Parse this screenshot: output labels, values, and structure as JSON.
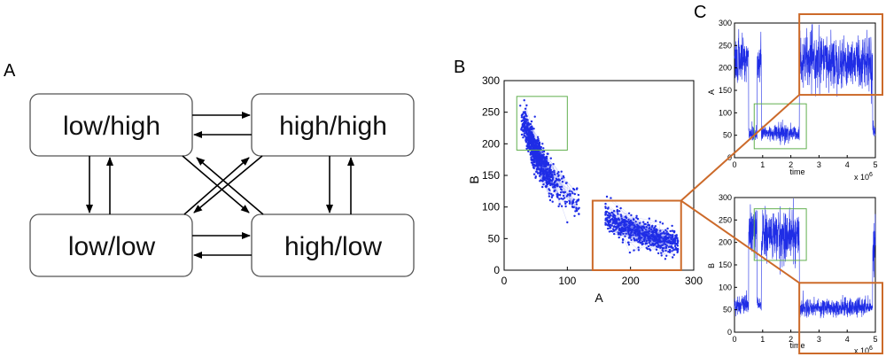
{
  "panels": {
    "a": {
      "letter": "A"
    },
    "b": {
      "letter": "B"
    },
    "c": {
      "letter": "C"
    }
  },
  "state_diagram": {
    "states": [
      {
        "id": "low-high",
        "label": "low/high"
      },
      {
        "id": "high-high",
        "label": "high/high"
      },
      {
        "id": "low-low",
        "label": "low/low"
      },
      {
        "id": "high-low",
        "label": "high/low"
      }
    ]
  },
  "colors": {
    "data": "#1f2de6",
    "green_box": "#62b04f",
    "orange_box": "#cc6a2a",
    "box_stroke": "#555555"
  },
  "chart_data": [
    {
      "type": "scatter",
      "id": "panel-b",
      "xlabel": "A",
      "ylabel": "B",
      "xlim": [
        0,
        300
      ],
      "ylim": [
        0,
        300
      ],
      "xticks": [
        0,
        100,
        200,
        300
      ],
      "yticks": [
        0,
        50,
        100,
        150,
        200,
        250,
        300
      ],
      "clusters": [
        {
          "region": "high B, low A",
          "x_range": [
            20,
            90
          ],
          "y_range": [
            150,
            290
          ]
        },
        {
          "region": "low B, high A",
          "x_range": [
            150,
            280
          ],
          "y_range": [
            30,
            110
          ]
        }
      ],
      "highlight_boxes": [
        {
          "color": "green",
          "x": [
            20,
            100
          ],
          "y": [
            190,
            275
          ]
        },
        {
          "color": "orange",
          "x": [
            140,
            280
          ],
          "y": [
            0,
            110
          ]
        }
      ]
    },
    {
      "type": "line",
      "id": "panel-c-top",
      "xlabel": "time",
      "ylabel": "A",
      "x_multiplier": "x 10",
      "x_multiplier_exp": "6",
      "xlim": [
        0,
        5
      ],
      "ylim": [
        0,
        300
      ],
      "xticks": [
        0,
        1,
        2,
        3,
        4,
        5
      ],
      "yticks": [
        0,
        50,
        100,
        150,
        200,
        250,
        300
      ],
      "segments": [
        {
          "t": [
            0.0,
            0.5
          ],
          "level": "high",
          "mean": 220
        },
        {
          "t": [
            0.5,
            0.8
          ],
          "level": "low",
          "mean": 55
        },
        {
          "t": [
            0.8,
            0.95
          ],
          "level": "high",
          "mean": 210
        },
        {
          "t": [
            0.95,
            2.3
          ],
          "level": "low",
          "mean": 55
        },
        {
          "t": [
            2.3,
            4.9
          ],
          "level": "high",
          "mean": 215
        },
        {
          "t": [
            4.9,
            5.0
          ],
          "level": "low",
          "mean": 60
        }
      ]
    },
    {
      "type": "line",
      "id": "panel-c-bottom",
      "xlabel": "time",
      "ylabel": "B",
      "x_multiplier": "x 10",
      "x_multiplier_exp": "6",
      "xlim": [
        0,
        5
      ],
      "ylim": [
        0,
        300
      ],
      "xticks": [
        0,
        1,
        2,
        3,
        4,
        5
      ],
      "yticks": [
        0,
        50,
        100,
        150,
        200,
        250,
        300
      ],
      "segments": [
        {
          "t": [
            0.0,
            0.5
          ],
          "level": "low",
          "mean": 60
        },
        {
          "t": [
            0.5,
            0.8
          ],
          "level": "high",
          "mean": 220
        },
        {
          "t": [
            0.8,
            0.95
          ],
          "level": "low",
          "mean": 60
        },
        {
          "t": [
            0.95,
            2.3
          ],
          "level": "high",
          "mean": 215
        },
        {
          "t": [
            2.3,
            4.9
          ],
          "level": "low",
          "mean": 55
        },
        {
          "t": [
            4.9,
            5.0
          ],
          "level": "high",
          "mean": 200
        }
      ]
    }
  ]
}
